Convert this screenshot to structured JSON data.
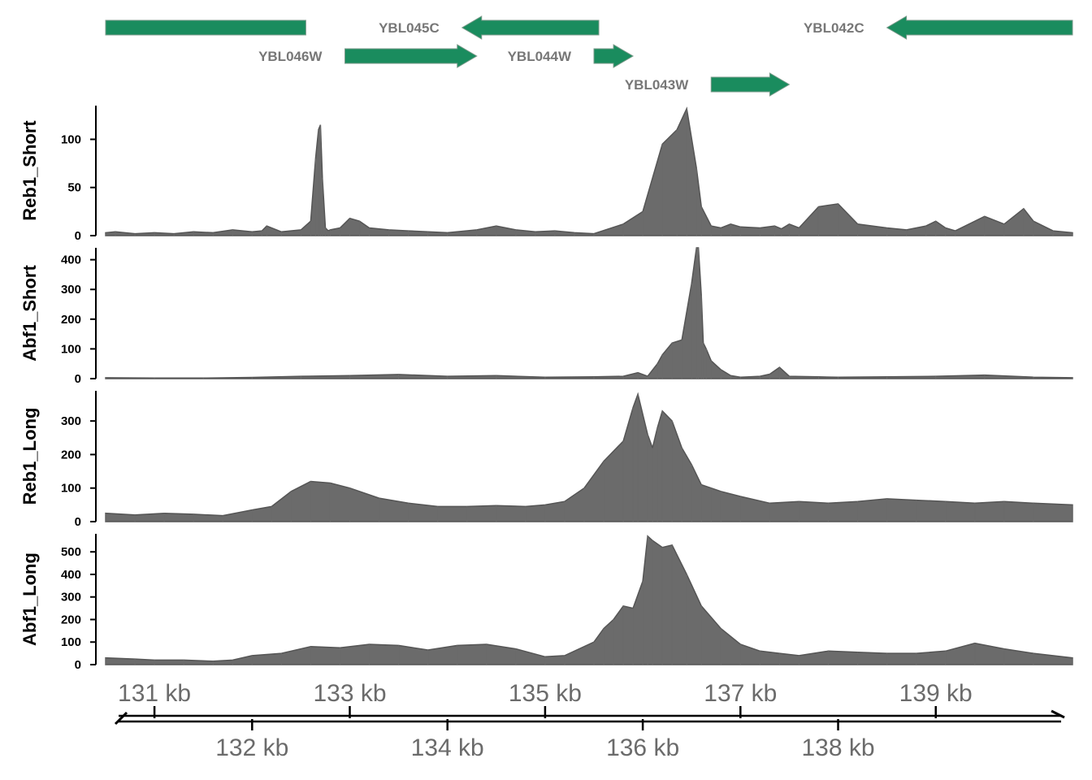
{
  "chart_data": {
    "type": "area",
    "genome_axis": {
      "unit": "kb",
      "range": [
        130.5,
        140.4
      ],
      "ticks_above": [
        "131 kb",
        "133 kb",
        "135 kb",
        "137 kb",
        "139 kb"
      ],
      "tick_values_above": [
        131,
        133,
        135,
        137,
        139
      ],
      "ticks_below": [
        "132 kb",
        "134 kb",
        "136 kb",
        "138 kb"
      ],
      "tick_values_below": [
        132,
        134,
        136,
        138
      ],
      "bidirectional_arrow": true
    },
    "gene_track": {
      "color": "#1a8c5e",
      "genes": [
        {
          "name": "",
          "start": 130.5,
          "end": 132.55,
          "strand": "none"
        },
        {
          "name": "YBL046W",
          "start": 132.95,
          "end": 134.3,
          "strand": "+"
        },
        {
          "name": "YBL045C",
          "start": 134.15,
          "end": 135.55,
          "strand": "-"
        },
        {
          "name": "YBL044W",
          "start": 135.5,
          "end": 135.9,
          "strand": "+"
        },
        {
          "name": "YBL043W",
          "start": 136.7,
          "end": 137.5,
          "strand": "+"
        },
        {
          "name": "YBL042C",
          "start": 138.5,
          "end": 140.4,
          "strand": "-"
        }
      ]
    },
    "series_color": "#6b6b6b",
    "tracks": [
      {
        "name": "Reb1_Short",
        "ylim": [
          0,
          135
        ],
        "ticks": [
          0,
          50,
          100
        ],
        "x": [
          130.5,
          130.6,
          130.8,
          131.0,
          131.2,
          131.4,
          131.6,
          131.8,
          132.0,
          132.1,
          132.15,
          132.3,
          132.5,
          132.6,
          132.65,
          132.68,
          132.7,
          132.72,
          132.75,
          132.78,
          132.8,
          132.9,
          133.0,
          133.1,
          133.2,
          133.4,
          133.6,
          133.8,
          134.0,
          134.3,
          134.5,
          134.7,
          134.9,
          135.1,
          135.3,
          135.5,
          135.8,
          136.0,
          136.2,
          136.35,
          136.45,
          136.55,
          136.6,
          136.7,
          136.8,
          136.9,
          137.0,
          137.2,
          137.35,
          137.42,
          137.5,
          137.6,
          137.8,
          138.0,
          138.2,
          138.5,
          138.7,
          138.9,
          139.0,
          139.1,
          139.2,
          139.5,
          139.7,
          139.9,
          140.0,
          140.2,
          140.4
        ],
        "y": [
          3,
          4,
          2,
          3,
          2,
          4,
          3,
          6,
          4,
          5,
          10,
          4,
          6,
          15,
          80,
          110,
          115,
          60,
          8,
          5,
          6,
          8,
          18,
          15,
          8,
          6,
          5,
          4,
          3,
          6,
          10,
          6,
          4,
          5,
          3,
          2,
          12,
          25,
          95,
          110,
          132,
          70,
          30,
          10,
          8,
          12,
          9,
          8,
          10,
          7,
          12,
          8,
          30,
          33,
          12,
          8,
          6,
          10,
          15,
          8,
          5,
          20,
          12,
          28,
          15,
          5,
          3
        ]
      },
      {
        "name": "Abf1_Short",
        "ylim": [
          0,
          440
        ],
        "ticks": [
          0,
          100,
          200,
          300,
          400
        ],
        "x": [
          130.5,
          131.0,
          131.5,
          132.0,
          132.5,
          133.0,
          133.5,
          134.0,
          134.5,
          135.0,
          135.5,
          135.8,
          135.95,
          136.05,
          136.15,
          136.2,
          136.3,
          136.4,
          136.5,
          136.55,
          136.57,
          136.6,
          136.62,
          136.65,
          136.7,
          136.8,
          136.9,
          137.0,
          137.2,
          137.3,
          137.4,
          137.5,
          137.8,
          138.0,
          138.5,
          139.0,
          139.5,
          140.0,
          140.4
        ],
        "y": [
          3,
          2,
          2,
          4,
          8,
          10,
          14,
          8,
          10,
          5,
          6,
          8,
          20,
          8,
          50,
          80,
          120,
          130,
          320,
          440,
          440,
          280,
          120,
          100,
          60,
          30,
          10,
          5,
          8,
          15,
          38,
          8,
          6,
          5,
          6,
          8,
          12,
          5,
          3
        ]
      },
      {
        "name": "Reb1_Long",
        "ylim": [
          0,
          390
        ],
        "ticks": [
          0,
          100,
          200,
          300
        ],
        "x": [
          130.5,
          130.8,
          131.1,
          131.4,
          131.7,
          132.0,
          132.2,
          132.4,
          132.6,
          132.8,
          133.0,
          133.3,
          133.6,
          133.9,
          134.2,
          134.5,
          134.8,
          135.0,
          135.2,
          135.4,
          135.6,
          135.8,
          135.9,
          135.95,
          136.05,
          136.1,
          136.15,
          136.2,
          136.3,
          136.4,
          136.5,
          136.6,
          136.7,
          136.8,
          137.0,
          137.3,
          137.6,
          137.9,
          138.2,
          138.5,
          138.8,
          139.1,
          139.4,
          139.7,
          140.0,
          140.4
        ],
        "y": [
          25,
          20,
          25,
          22,
          18,
          35,
          45,
          90,
          120,
          115,
          100,
          70,
          55,
          45,
          45,
          48,
          45,
          50,
          60,
          100,
          180,
          240,
          340,
          380,
          260,
          220,
          280,
          330,
          300,
          220,
          170,
          110,
          100,
          90,
          75,
          55,
          60,
          55,
          60,
          68,
          64,
          60,
          55,
          60,
          55,
          50
        ]
      },
      {
        "name": "Abf1_Long",
        "ylim": [
          0,
          580
        ],
        "ticks": [
          0,
          100,
          200,
          300,
          400,
          500
        ],
        "x": [
          130.5,
          130.8,
          131.0,
          131.3,
          131.6,
          131.8,
          132.0,
          132.3,
          132.6,
          132.9,
          133.2,
          133.5,
          133.8,
          134.1,
          134.4,
          134.7,
          135.0,
          135.2,
          135.5,
          135.6,
          135.7,
          135.8,
          135.9,
          136.0,
          136.05,
          136.1,
          136.2,
          136.3,
          136.45,
          136.6,
          136.8,
          137.0,
          137.2,
          137.4,
          137.6,
          137.9,
          138.2,
          138.5,
          138.8,
          139.1,
          139.4,
          139.7,
          140.0,
          140.4
        ],
        "y": [
          30,
          25,
          20,
          20,
          15,
          20,
          40,
          50,
          80,
          75,
          90,
          85,
          65,
          85,
          90,
          70,
          35,
          40,
          100,
          160,
          200,
          260,
          250,
          370,
          570,
          550,
          520,
          530,
          400,
          260,
          160,
          90,
          60,
          50,
          40,
          60,
          55,
          50,
          50,
          60,
          95,
          70,
          50,
          30
        ]
      }
    ]
  }
}
